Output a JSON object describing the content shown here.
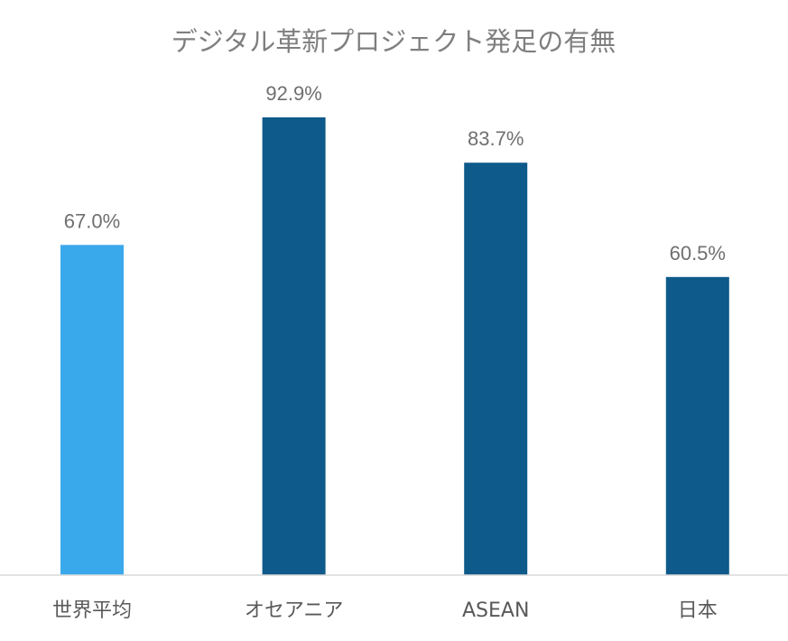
{
  "chart_data": {
    "type": "bar",
    "title": "デジタル革新プロジェクト発足の有無",
    "xlabel": "",
    "ylabel": "",
    "categories": [
      "世界平均",
      "オセアニア",
      "ASEAN",
      "日本"
    ],
    "values": [
      67.0,
      92.9,
      83.7,
      60.5
    ],
    "value_labels": [
      "67.0%",
      "92.9%",
      "83.7%",
      "60.5%"
    ],
    "unit": "%",
    "ylim": [
      0,
      100
    ],
    "grid": false,
    "legend": "none",
    "colors": [
      "#3aa9ec",
      "#0e5a8a",
      "#0e5a8a",
      "#0e5a8a"
    ],
    "axis_color": "#d9d9d9"
  }
}
